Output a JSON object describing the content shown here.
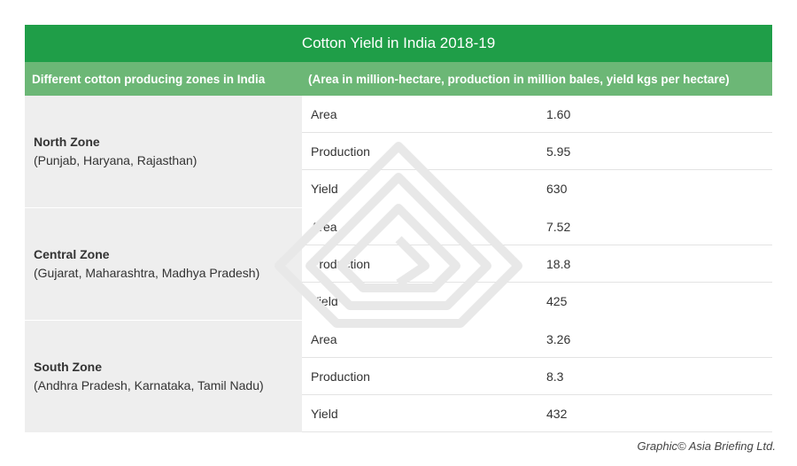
{
  "title": "Cotton Yield in India 2018-19",
  "header": {
    "left": "Different cotton producing zones in India",
    "right": "(Area in million-hectare, production in million bales, yield kgs per hectare)"
  },
  "zones": [
    {
      "name": "North Zone",
      "states": "(Punjab, Haryana, Rajasthan)",
      "rows": [
        {
          "metric": "Area",
          "value": "1.60"
        },
        {
          "metric": "Production",
          "value": "5.95"
        },
        {
          "metric": "Yield",
          "value": "630"
        }
      ]
    },
    {
      "name": "Central Zone",
      "states": "(Gujarat, Maharashtra, Madhya Pradesh)",
      "rows": [
        {
          "metric": "Area",
          "value": "7.52"
        },
        {
          "metric": "Production",
          "value": "18.8"
        },
        {
          "metric": "Yield",
          "value": "425"
        }
      ]
    },
    {
      "name": "South Zone",
      "states": "(Andhra Pradesh, Karnataka, Tamil Nadu)",
      "rows": [
        {
          "metric": "Area",
          "value": "3.26"
        },
        {
          "metric": "Production",
          "value": "8.3"
        },
        {
          "metric": "Yield",
          "value": "432"
        }
      ]
    }
  ],
  "credit": "Graphic© Asia Briefing Ltd.",
  "colors": {
    "title_bg": "#1f9e48",
    "header_bg": "#6cb776",
    "zone_bg": "#eeeeee"
  }
}
